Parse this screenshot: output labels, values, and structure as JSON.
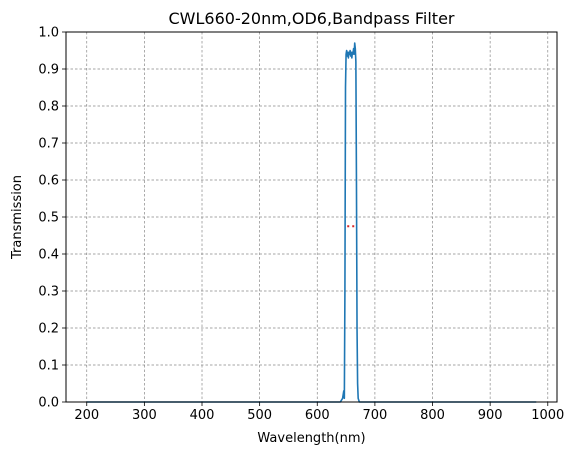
{
  "chart_data": {
    "type": "line",
    "title": "CWL660-20nm,OD6,Bandpass Filter",
    "xlabel": "Wavelength(nm)",
    "ylabel": "Transmission",
    "xlim": [
      164,
      1016
    ],
    "ylim": [
      0,
      1.0
    ],
    "xticks": [
      200,
      300,
      400,
      500,
      600,
      700,
      800,
      900,
      1000
    ],
    "yticks": [
      0.0,
      0.1,
      0.2,
      0.3,
      0.4,
      0.5,
      0.6,
      0.7,
      0.8,
      0.9,
      1.0
    ],
    "ytick_labels": [
      "0.0",
      "0.1",
      "0.2",
      "0.3",
      "0.4",
      "0.5",
      "0.6",
      "0.7",
      "0.8",
      "0.9",
      "1.0"
    ],
    "grid": true,
    "series": [
      {
        "color": "#1f77b4",
        "x": [
          200,
          300,
          400,
          500,
          600,
          640,
          644,
          646,
          647,
          648,
          649,
          650,
          651,
          652,
          653,
          654,
          655,
          656,
          657,
          658,
          659,
          660,
          661,
          662,
          663,
          664,
          665,
          666,
          667,
          668,
          669,
          670,
          671,
          673,
          675,
          680,
          700,
          800,
          900,
          980
        ],
        "y": [
          0.0,
          0.0,
          0.0,
          0.0,
          0.0,
          0.0,
          0.01,
          0.03,
          0.01,
          0.3,
          0.85,
          0.94,
          0.95,
          0.935,
          0.945,
          0.93,
          0.945,
          0.94,
          0.95,
          0.935,
          0.945,
          0.93,
          0.945,
          0.94,
          0.955,
          0.94,
          0.97,
          0.955,
          0.92,
          0.6,
          0.2,
          0.05,
          0.01,
          0.0,
          0.0,
          0.0,
          0.0,
          0.0,
          0.0,
          0.0
        ]
      },
      {
        "color": "#d62728",
        "style": "dotted",
        "x": [
          652,
          668
        ],
        "y": [
          0.475,
          0.475
        ]
      }
    ]
  }
}
